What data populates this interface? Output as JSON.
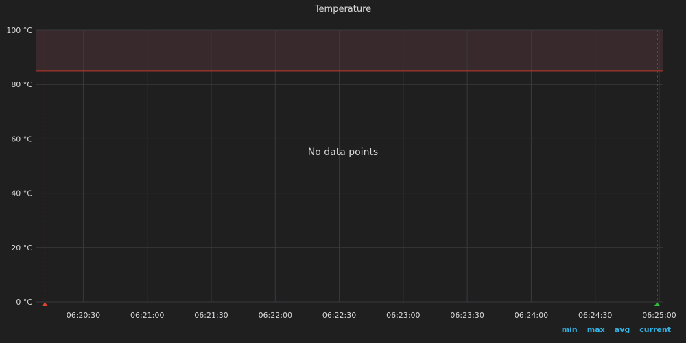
{
  "panel": {
    "title": "Temperature",
    "no_data_text": "No data points",
    "legend_headers": [
      "min",
      "max",
      "avg",
      "current"
    ]
  },
  "colors": {
    "background": "#1f1f20",
    "grid": "#3a3a3c",
    "threshold_line": "#c0392b",
    "threshold_fill": "#3a2a2d",
    "annotation_start": "#e0452a",
    "annotation_end": "#2fbe3a",
    "legend_header": "#33b5e5"
  },
  "chart_data": {
    "type": "line",
    "title": "Temperature",
    "series": [],
    "x_range": [
      "06:20:08",
      "06:25:00"
    ],
    "x_ticks": [
      "06:20:30",
      "06:21:00",
      "06:21:30",
      "06:22:00",
      "06:22:30",
      "06:23:00",
      "06:23:30",
      "06:24:00",
      "06:24:30",
      "06:25:00"
    ],
    "y_unit": "°C",
    "ylim": [
      0,
      100
    ],
    "y_ticks": [
      0,
      20,
      40,
      60,
      80,
      100
    ],
    "y_tick_labels": [
      "0 °C",
      "20 °C",
      "40 °C",
      "60 °C",
      "80 °C",
      "100 °C"
    ],
    "grid": true,
    "threshold": {
      "value": 85,
      "fill_above": true
    },
    "annotations": [
      {
        "time": "06:20:12",
        "kind": "start"
      },
      {
        "time": "06:24:59",
        "kind": "end"
      }
    ]
  }
}
